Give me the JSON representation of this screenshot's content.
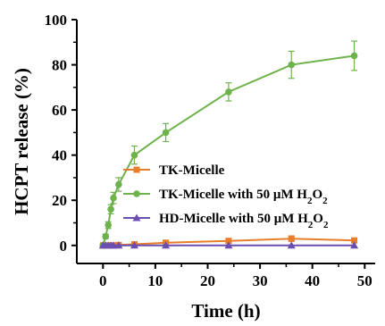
{
  "chart_data": {
    "type": "line",
    "title": "",
    "xlabel": "Time (h)",
    "ylabel": "HCPT release (%)",
    "xlim": [
      -5,
      52
    ],
    "ylim": [
      -8,
      100
    ],
    "x_ticks": [
      0,
      10,
      20,
      30,
      40,
      50
    ],
    "x_tick_labels": [
      "0",
      "10",
      "20",
      "30",
      "40",
      "50"
    ],
    "y_ticks": [
      0,
      20,
      40,
      60,
      80,
      100
    ],
    "y_tick_labels": [
      "0",
      "20",
      "40",
      "60",
      "80",
      "100"
    ],
    "grid": false,
    "legend_position": "center-right",
    "series": [
      {
        "name": "TK-Micelle",
        "legend_parts": [
          "TK-Micelle"
        ],
        "color": "#e87d2a",
        "marker": "square",
        "x": [
          0,
          0.5,
          1,
          1.5,
          2,
          3,
          6,
          12,
          24,
          36,
          48
        ],
        "y": [
          0,
          0,
          0,
          0,
          0,
          0.2,
          0.5,
          1.2,
          2.0,
          3.0,
          2.2
        ],
        "error": [
          0.3,
          0.3,
          0.3,
          0.3,
          0.3,
          0.4,
          0.6,
          0.8,
          1.0,
          1.2,
          1.0
        ]
      },
      {
        "name": "TK-Micelle with 50 μM H2O2",
        "legend_parts": [
          "TK-Micelle with 50 μM H",
          "2",
          "O",
          "2"
        ],
        "color": "#6db24a",
        "marker": "circle",
        "x": [
          0,
          0.5,
          1,
          1.5,
          2,
          3,
          6,
          12,
          24,
          36,
          48
        ],
        "y": [
          0,
          4,
          9,
          16,
          21,
          27,
          40,
          50,
          68,
          80,
          84
        ],
        "error": [
          0.5,
          1,
          1.5,
          2,
          2.5,
          3,
          4,
          4,
          4,
          6,
          6.5
        ]
      },
      {
        "name": "HD-Micelle with 50 μM H2O2",
        "legend_parts": [
          "HD-Micelle with 50 μM H",
          "2",
          "O",
          "2"
        ],
        "color": "#6a4fb0",
        "marker": "triangle",
        "x": [
          0,
          0.5,
          1,
          1.5,
          2,
          3,
          6,
          12,
          24,
          36,
          48
        ],
        "y": [
          0,
          0,
          0,
          0,
          0,
          0,
          0,
          0,
          0,
          0,
          0
        ],
        "error": [
          0,
          0,
          0,
          0,
          0,
          0,
          0,
          0,
          0,
          0,
          0
        ]
      }
    ]
  }
}
